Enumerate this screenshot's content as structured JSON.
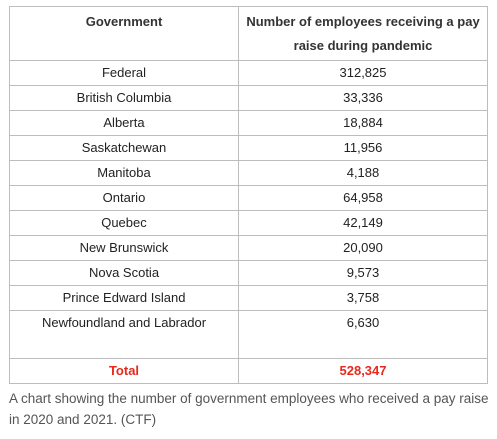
{
  "table": {
    "headers": [
      "Government",
      "Number of employees receiving a pay raise during pandemic"
    ],
    "rows": [
      {
        "government": "Federal",
        "employees": "312,825"
      },
      {
        "government": "British Columbia",
        "employees": "33,336"
      },
      {
        "government": "Alberta",
        "employees": "18,884"
      },
      {
        "government": "Saskatchewan",
        "employees": "11,956"
      },
      {
        "government": "Manitoba",
        "employees": "4,188"
      },
      {
        "government": "Ontario",
        "employees": "64,958"
      },
      {
        "government": "Quebec",
        "employees": "42,149"
      },
      {
        "government": "New Brunswick",
        "employees": "20,090"
      },
      {
        "government": "Nova Scotia",
        "employees": "9,573"
      },
      {
        "government": "Prince Edward Island",
        "employees": "3,758"
      },
      {
        "government": "Newfoundland and Labrador",
        "employees": "6,630"
      }
    ],
    "total": {
      "label": "Total",
      "value": "528,347"
    }
  },
  "caption": "A chart showing the number of government employees who received a pay raise in 2020 and 2021. (CTF)",
  "colors": {
    "total_text": "#e8291c",
    "border": "#bdbdbd",
    "caption_text": "#555555"
  }
}
